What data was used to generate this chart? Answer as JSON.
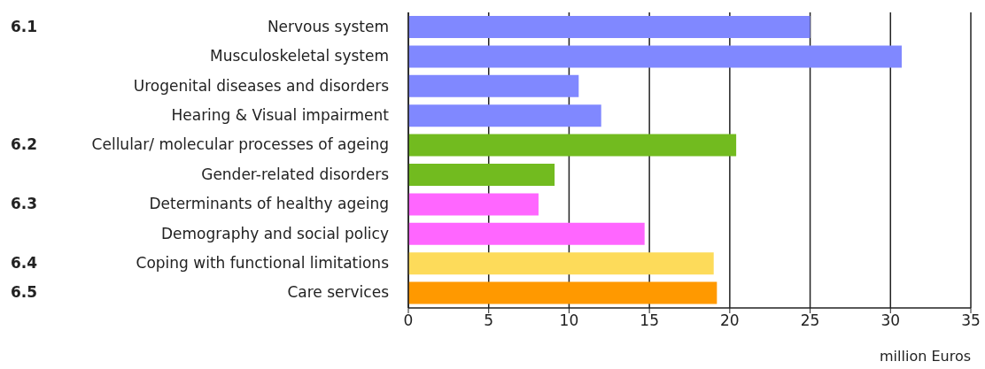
{
  "chart_data": {
    "type": "bar",
    "orientation": "horizontal",
    "categories": [
      "Nervous system",
      "Musculoskeletal system",
      "Urogenital diseases and disorders",
      "Hearing & Visual impairment",
      "Cellular/ molecular processes of ageing",
      "Gender-related disorders",
      "Determinants of healthy ageing",
      "Demography and social policy",
      "Coping with functional limitations",
      "Care services"
    ],
    "values": [
      25,
      30.7,
      10.6,
      12,
      20.4,
      9.1,
      8.1,
      14.7,
      19,
      19.2
    ],
    "colors": [
      "#8088ff",
      "#8088ff",
      "#8088ff",
      "#8088ff",
      "#72bb1f",
      "#72bb1f",
      "#ff66ff",
      "#ff66ff",
      "#fddb5a",
      "#ff9900"
    ],
    "xlim": [
      0,
      35
    ],
    "xticks": [
      0,
      5,
      10,
      15,
      20,
      25,
      30,
      35
    ],
    "xlabel": "million Euros",
    "grid": "x",
    "annotations": [
      "6.1",
      "6.2",
      "6.3",
      "6.4",
      "6.5"
    ]
  }
}
